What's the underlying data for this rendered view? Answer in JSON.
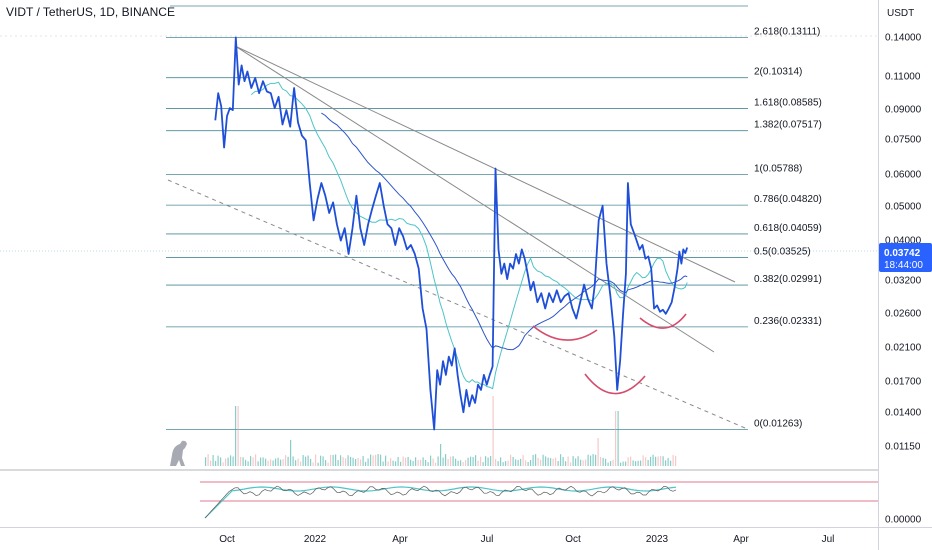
{
  "header": {
    "title": "VIDT / TetherUS, 1D, BINANCE"
  },
  "colors": {
    "price": "#1f4fd8",
    "ma_fast": "#4fc3c7",
    "ma_slow": "#2f55c9",
    "fib": "#4a8a9a",
    "trend": "#8a8a8a",
    "arc": "#d64b6b",
    "price_badge": "#2962ff",
    "volume": "#26a69a",
    "rsi_band": "#d64b6b"
  },
  "chart_data": {
    "type": "line",
    "y_scale": "log",
    "y_axis_unit": "USDT",
    "y_ticks": [
      "0.14000",
      "0.11000",
      "0.09000",
      "0.07500",
      "0.06000",
      "0.05000",
      "0.04000",
      "0.03200",
      "0.02600",
      "0.02100",
      "0.01700",
      "0.01400",
      "0.01150",
      "0.00000"
    ],
    "x_ticks": [
      "Oct",
      "2022",
      "Apr",
      "Jul",
      "Oct",
      "2023",
      "Apr",
      "Jul"
    ],
    "last_price": "0.03742",
    "countdown": "18:44:00",
    "fib_levels": [
      {
        "label": "2.618(0.13111)",
        "value": 0.13111
      },
      {
        "label": "2(0.10314)",
        "value": 0.10314
      },
      {
        "label": "1.618(0.08585)",
        "value": 0.08585
      },
      {
        "label": "1.382(0.07517)",
        "value": 0.07517
      },
      {
        "label": "1(0.05788)",
        "value": 0.05788
      },
      {
        "label": "0.786(0.04820)",
        "value": 0.0482
      },
      {
        "label": "0.618(0.04059)",
        "value": 0.04059
      },
      {
        "label": "0.5(0.03525)",
        "value": 0.03525
      },
      {
        "label": "0.382(0.02991)",
        "value": 0.02991
      },
      {
        "label": "0.236(0.02331)",
        "value": 0.02331
      },
      {
        "label": "0(0.01263)",
        "value": 0.01263
      }
    ],
    "series": [
      {
        "values": [
          [
            "2021-09-19",
            0.08
          ],
          [
            "2021-09-22",
            0.094
          ],
          [
            "2021-09-25",
            0.087
          ],
          [
            "2021-09-28",
            0.068
          ],
          [
            "2021-10-01",
            0.082
          ],
          [
            "2021-10-04",
            0.086
          ],
          [
            "2021-10-07",
            0.085
          ],
          [
            "2021-10-10",
            0.13111
          ],
          [
            "2021-10-13",
            0.099
          ],
          [
            "2021-10-16",
            0.111
          ],
          [
            "2021-10-19",
            0.101
          ],
          [
            "2021-10-22",
            0.107
          ],
          [
            "2021-10-26",
            0.097
          ],
          [
            "2021-10-30",
            0.103
          ],
          [
            "2021-11-03",
            0.094
          ],
          [
            "2021-11-07",
            0.101
          ],
          [
            "2021-11-11",
            0.095
          ],
          [
            "2021-11-15",
            0.094
          ],
          [
            "2021-11-19",
            0.086
          ],
          [
            "2021-11-23",
            0.092
          ],
          [
            "2021-11-27",
            0.078
          ],
          [
            "2021-12-01",
            0.085
          ],
          [
            "2021-12-05",
            0.077
          ],
          [
            "2021-12-09",
            0.097
          ],
          [
            "2021-12-13",
            0.079
          ],
          [
            "2021-12-17",
            0.073
          ],
          [
            "2021-12-21",
            0.071
          ],
          [
            "2021-12-25",
            0.055
          ],
          [
            "2021-12-29",
            0.044
          ],
          [
            "2022-01-02",
            0.05
          ],
          [
            "2022-01-06",
            0.055
          ],
          [
            "2022-01-10",
            0.051
          ],
          [
            "2022-01-14",
            0.046
          ],
          [
            "2022-01-18",
            0.049
          ],
          [
            "2022-01-22",
            0.043
          ],
          [
            "2022-01-26",
            0.039
          ],
          [
            "2022-01-30",
            0.042
          ],
          [
            "2022-02-03",
            0.036
          ],
          [
            "2022-02-07",
            0.042
          ],
          [
            "2022-02-11",
            0.051
          ],
          [
            "2022-02-15",
            0.042
          ],
          [
            "2022-02-19",
            0.038
          ],
          [
            "2022-02-23",
            0.043
          ],
          [
            "2022-02-27",
            0.047
          ],
          [
            "2022-03-03",
            0.051
          ],
          [
            "2022-03-07",
            0.055
          ],
          [
            "2022-03-11",
            0.048
          ],
          [
            "2022-03-15",
            0.043
          ],
          [
            "2022-03-19",
            0.042
          ],
          [
            "2022-03-23",
            0.038
          ],
          [
            "2022-03-27",
            0.042
          ],
          [
            "2022-03-31",
            0.04
          ],
          [
            "2022-04-04",
            0.037
          ],
          [
            "2022-04-08",
            0.038
          ],
          [
            "2022-04-12",
            0.036
          ],
          [
            "2022-04-16",
            0.033
          ],
          [
            "2022-04-20",
            0.026
          ],
          [
            "2022-04-24",
            0.023
          ],
          [
            "2022-04-28",
            0.016
          ],
          [
            "2022-05-02",
            0.01263
          ],
          [
            "2022-05-05",
            0.018
          ],
          [
            "2022-05-08",
            0.0165
          ],
          [
            "2022-05-11",
            0.019
          ],
          [
            "2022-05-14",
            0.0175
          ],
          [
            "2022-05-17",
            0.0195
          ],
          [
            "2022-05-20",
            0.0185
          ],
          [
            "2022-05-23",
            0.0205
          ],
          [
            "2022-05-26",
            0.0175
          ],
          [
            "2022-05-29",
            0.0155
          ],
          [
            "2022-06-01",
            0.014
          ],
          [
            "2022-06-04",
            0.016
          ],
          [
            "2022-06-07",
            0.0145
          ],
          [
            "2022-06-10",
            0.0155
          ],
          [
            "2022-06-13",
            0.0148
          ],
          [
            "2022-06-16",
            0.0165
          ],
          [
            "2022-06-19",
            0.016
          ],
          [
            "2022-06-22",
            0.0175
          ],
          [
            "2022-06-25",
            0.0165
          ],
          [
            "2022-06-28",
            0.0175
          ],
          [
            "2022-07-01",
            0.0184
          ],
          [
            "2022-07-04",
            0.06
          ],
          [
            "2022-07-07",
            0.037
          ],
          [
            "2022-07-10",
            0.032
          ],
          [
            "2022-07-13",
            0.034
          ],
          [
            "2022-07-16",
            0.031
          ],
          [
            "2022-07-19",
            0.034
          ],
          [
            "2022-07-22",
            0.033
          ],
          [
            "2022-07-25",
            0.036
          ],
          [
            "2022-07-28",
            0.034
          ],
          [
            "2022-07-31",
            0.037
          ],
          [
            "2022-08-03",
            0.035
          ],
          [
            "2022-08-06",
            0.032
          ],
          [
            "2022-08-09",
            0.029
          ],
          [
            "2022-08-12",
            0.0305
          ],
          [
            "2022-08-16",
            0.027
          ],
          [
            "2022-08-20",
            0.0285
          ],
          [
            "2022-08-24",
            0.026
          ],
          [
            "2022-08-28",
            0.0285
          ],
          [
            "2022-09-01",
            0.027
          ],
          [
            "2022-09-05",
            0.029
          ],
          [
            "2022-09-09",
            0.027
          ],
          [
            "2022-09-13",
            0.028
          ],
          [
            "2022-09-17",
            0.0285
          ],
          [
            "2022-09-21",
            0.026
          ],
          [
            "2022-09-25",
            0.0245
          ],
          [
            "2022-09-29",
            0.027
          ],
          [
            "2022-10-03",
            0.03
          ],
          [
            "2022-10-07",
            0.0275
          ],
          [
            "2022-10-11",
            0.026
          ],
          [
            "2022-10-14",
            0.03
          ],
          [
            "2022-10-18",
            0.044
          ],
          [
            "2022-10-22",
            0.048
          ],
          [
            "2022-10-26",
            0.034
          ],
          [
            "2022-10-30",
            0.028
          ],
          [
            "2022-11-03",
            0.022
          ],
          [
            "2022-11-06",
            0.016
          ],
          [
            "2022-11-09",
            0.019
          ],
          [
            "2022-11-12",
            0.025
          ],
          [
            "2022-11-15",
            0.032
          ],
          [
            "2022-11-17",
            0.055
          ],
          [
            "2022-11-20",
            0.043
          ],
          [
            "2022-11-23",
            0.041
          ],
          [
            "2022-11-26",
            0.039
          ],
          [
            "2022-11-29",
            0.037
          ],
          [
            "2022-12-02",
            0.038
          ],
          [
            "2022-12-05",
            0.035
          ],
          [
            "2022-12-08",
            0.0355
          ],
          [
            "2022-12-11",
            0.033
          ],
          [
            "2022-12-14",
            0.026
          ],
          [
            "2022-12-17",
            0.0265
          ],
          [
            "2022-12-20",
            0.0255
          ],
          [
            "2022-12-23",
            0.0258
          ],
          [
            "2022-12-26",
            0.0252
          ],
          [
            "2022-12-29",
            0.026
          ],
          [
            "2023-01-01",
            0.027
          ],
          [
            "2023-01-04",
            0.0295
          ],
          [
            "2023-01-07",
            0.033
          ],
          [
            "2023-01-09",
            0.0365
          ],
          [
            "2023-01-11",
            0.034
          ],
          [
            "2023-01-13",
            0.037
          ],
          [
            "2023-01-15",
            0.0362
          ],
          [
            "2023-01-17",
            0.03742
          ]
        ]
      }
    ]
  }
}
